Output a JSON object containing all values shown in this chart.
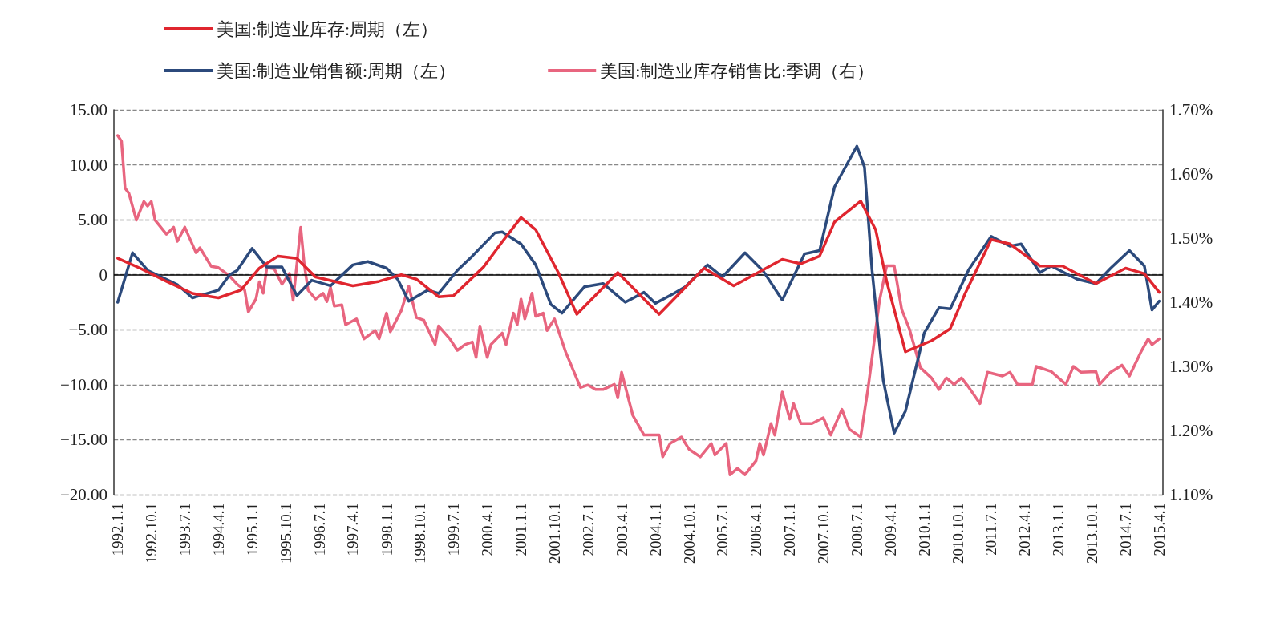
{
  "chart_data": {
    "type": "line",
    "xlim": [
      "1991-12-01",
      "2015-05-01"
    ],
    "xticks": [
      {
        "value": "1992-01-01",
        "label": "1992.1.1"
      },
      {
        "value": "1992-10-01",
        "label": "1992.10.1"
      },
      {
        "value": "1993-07-01",
        "label": "1993.7.1"
      },
      {
        "value": "1994-04-01",
        "label": "1994.4.1"
      },
      {
        "value": "1995-01-01",
        "label": "1995.1.1"
      },
      {
        "value": "1995-10-01",
        "label": "1995.10.1"
      },
      {
        "value": "1996-07-01",
        "label": "1996.7.1"
      },
      {
        "value": "1997-04-01",
        "label": "1997.4.1"
      },
      {
        "value": "1998-01-01",
        "label": "1998.1.1"
      },
      {
        "value": "1998-10-01",
        "label": "1998.10.1"
      },
      {
        "value": "1999-07-01",
        "label": "1999.7.1"
      },
      {
        "value": "2000-04-01",
        "label": "2000.4.1"
      },
      {
        "value": "2001-01-01",
        "label": "2001.1.1"
      },
      {
        "value": "2001-10-01",
        "label": "2001.10.1"
      },
      {
        "value": "2002-07-01",
        "label": "2002.7.1"
      },
      {
        "value": "2003-04-01",
        "label": "2003.4.1"
      },
      {
        "value": "2004-01-01",
        "label": "2004.1.1"
      },
      {
        "value": "2004-10-01",
        "label": "2004.10.1"
      },
      {
        "value": "2005-07-01",
        "label": "2005.7.1"
      },
      {
        "value": "2006-04-01",
        "label": "2006.4.1"
      },
      {
        "value": "2007-01-01",
        "label": "2007.1.1"
      },
      {
        "value": "2007-10-01",
        "label": "2007.10.1"
      },
      {
        "value": "2008-07-01",
        "label": "2008.7.1"
      },
      {
        "value": "2009-04-01",
        "label": "2009.4.1"
      },
      {
        "value": "2010-01-01",
        "label": "2010.1.1"
      },
      {
        "value": "2010-10-01",
        "label": "2010.10.1"
      },
      {
        "value": "2011-07-01",
        "label": "2011.7.1"
      },
      {
        "value": "2012-04-01",
        "label": "2012.4.1"
      },
      {
        "value": "2013-01-01",
        "label": "2013.1.1"
      },
      {
        "value": "2013-10-01",
        "label": "2013.10.1"
      },
      {
        "value": "2014-07-01",
        "label": "2014.7.1"
      },
      {
        "value": "2015-04-01",
        "label": "2015.4.1"
      }
    ],
    "ylim": [
      -20,
      15
    ],
    "yticks": [
      {
        "value": -20,
        "label": "−20.00"
      },
      {
        "value": -15,
        "label": "−15.00"
      },
      {
        "value": -10,
        "label": "−10.00"
      },
      {
        "value": -5,
        "label": "−5.00"
      },
      0,
      {
        "value": 5,
        "label": "5.00"
      },
      {
        "value": 10,
        "label": "10.00"
      },
      {
        "value": 15,
        "label": "15.00"
      }
    ],
    "y2lim": [
      1.1,
      1.7
    ],
    "y2ticks": [
      {
        "value": 1.1,
        "label": "1.10%"
      },
      {
        "value": 1.2,
        "label": "1.20%"
      },
      {
        "value": 1.3,
        "label": "1.30%"
      },
      {
        "value": 1.4,
        "label": "1.40%"
      },
      {
        "value": 1.5,
        "label": "1.50%"
      },
      {
        "value": 1.6,
        "label": "1.60%"
      },
      {
        "value": 1.7,
        "label": "1.70%"
      }
    ],
    "grid": "y",
    "legend": "top left",
    "marker": "none",
    "line_style": "solid",
    "ref_lines": [
      {
        "axis": "y",
        "value": 0,
        "color": "#000000"
      }
    ],
    "series": [
      {
        "name": "美国:制造业库存:周期（左）",
        "color": "#e0262f",
        "x": [
          "1992-01",
          "1992-07",
          "1993-02",
          "1993-09",
          "1994-04",
          "1994-10",
          "1995-03",
          "1995-08",
          "1996-01",
          "1996-06",
          "1997-04",
          "1997-11",
          "1998-05",
          "1998-09",
          "1999-03",
          "1999-07",
          "2000-03",
          "2000-08",
          "2001-01",
          "2001-05",
          "2001-11",
          "2002-04",
          "2003-03",
          "2004-02",
          "2005-02",
          "2005-10",
          "2006-11",
          "2007-04",
          "2007-09",
          "2008-01",
          "2008-08",
          "2008-12",
          "2009-03",
          "2009-08",
          "2010-03",
          "2010-08",
          "2010-12",
          "2011-07",
          "2011-12",
          "2012-08",
          "2013-02",
          "2013-11",
          "2014-07",
          "2014-12",
          "2015-04"
        ],
        "values": [
          1.5,
          0.6,
          -0.6,
          -1.7,
          -2.1,
          -1.4,
          0.6,
          1.7,
          1.5,
          -0.2,
          -1.0,
          -0.6,
          0.0,
          -0.4,
          -2.0,
          -1.9,
          0.7,
          3.0,
          5.2,
          4.1,
          0.2,
          -3.6,
          0.2,
          -3.6,
          0.6,
          -1.0,
          1.4,
          1.0,
          1.7,
          4.8,
          6.7,
          4.1,
          -0.6,
          -7.0,
          -6.0,
          -4.9,
          -1.7,
          3.2,
          2.8,
          0.8,
          0.8,
          -0.8,
          0.6,
          0.1,
          -1.6
        ]
      },
      {
        "name": "美国:制造业销售额:周期（左）",
        "color": "#2c4a7c",
        "x": [
          "1992-01",
          "1992-05",
          "1992-09",
          "1993-05",
          "1993-09",
          "1994-04",
          "1994-07",
          "1994-09",
          "1995-01",
          "1995-05",
          "1995-09",
          "1996-01",
          "1996-05",
          "1996-10",
          "1997-04",
          "1997-08",
          "1998-01",
          "1998-04",
          "1998-07",
          "1998-12",
          "1999-03",
          "1999-08",
          "1999-12",
          "2000-06",
          "2000-08",
          "2001-01",
          "2001-05",
          "2001-09",
          "2001-12",
          "2002-06",
          "2002-11",
          "2003-05",
          "2003-10",
          "2004-01",
          "2004-06",
          "2004-09",
          "2005-03",
          "2005-07",
          "2006-01",
          "2006-06",
          "2006-11",
          "2007-05",
          "2007-09",
          "2008-01",
          "2008-07",
          "2008-09",
          "2008-11",
          "2009-02",
          "2009-05",
          "2009-08",
          "2010-01",
          "2010-05",
          "2010-08",
          "2011-01",
          "2011-07",
          "2011-12",
          "2012-03",
          "2012-08",
          "2012-11",
          "2013-06",
          "2013-11",
          "2014-03",
          "2014-08",
          "2014-12",
          "2015-02",
          "2015-04"
        ],
        "values": [
          -2.5,
          2.0,
          0.4,
          -0.9,
          -2.1,
          -1.4,
          0.0,
          0.4,
          2.4,
          0.7,
          0.7,
          -1.9,
          -0.5,
          -1.0,
          0.9,
          1.2,
          0.6,
          -0.4,
          -2.4,
          -1.4,
          -1.7,
          0.4,
          1.7,
          3.8,
          3.9,
          2.8,
          0.9,
          -2.7,
          -3.5,
          -1.1,
          -0.8,
          -2.5,
          -1.6,
          -2.6,
          -1.7,
          -1.1,
          0.9,
          -0.2,
          2.0,
          0.3,
          -2.3,
          1.9,
          2.2,
          8.0,
          11.7,
          9.8,
          0.5,
          -9.6,
          -14.4,
          -12.4,
          -5.3,
          -3.0,
          -3.1,
          0.5,
          3.5,
          2.6,
          2.8,
          0.2,
          0.8,
          -0.4,
          -0.8,
          0.6,
          2.2,
          0.8,
          -3.2,
          -2.4
        ]
      },
      {
        "name": "美国:制造业库存销售比:季调（右）",
        "color": "#e8657f",
        "axis": "y2",
        "x": [
          "1992-01",
          "1992-02",
          "1992-03",
          "1992-04",
          "1992-06",
          "1992-08",
          "1992-09",
          "1992-10",
          "1992-11",
          "1993-02",
          "1993-04",
          "1993-05",
          "1993-07",
          "1993-10",
          "1993-11",
          "1994-02",
          "1994-04",
          "1994-07",
          "1994-09",
          "1994-11",
          "1994-12",
          "1995-02",
          "1995-03",
          "1995-04",
          "1995-05",
          "1995-07",
          "1995-09",
          "1995-11",
          "1995-12",
          "1996-02",
          "1996-03",
          "1996-04",
          "1996-06",
          "1996-08",
          "1996-09",
          "1996-10",
          "1996-11",
          "1997-01",
          "1997-02",
          "1997-05",
          "1997-07",
          "1997-10",
          "1997-11",
          "1998-01",
          "1998-02",
          "1998-05",
          "1998-07",
          "1998-09",
          "1998-11",
          "1999-02",
          "1999-03",
          "1999-06",
          "1999-08",
          "1999-10",
          "1999-12",
          "2000-01",
          "2000-02",
          "2000-04",
          "2000-05",
          "2000-08",
          "2000-09",
          "2000-11",
          "2000-12",
          "2001-01",
          "2001-02",
          "2001-04",
          "2001-05",
          "2001-07",
          "2001-08",
          "2001-10",
          "2002-01",
          "2002-05",
          "2002-07",
          "2002-09",
          "2002-11",
          "2003-02",
          "2003-03",
          "2003-04",
          "2003-07",
          "2003-10",
          "2004-02",
          "2004-03",
          "2004-05",
          "2004-08",
          "2004-10",
          "2005-01",
          "2005-04",
          "2005-05",
          "2005-08",
          "2005-09",
          "2005-11",
          "2006-01",
          "2006-04",
          "2006-05",
          "2006-06",
          "2006-08",
          "2006-09",
          "2006-11",
          "2007-01",
          "2007-02",
          "2007-04",
          "2007-07",
          "2007-10",
          "2007-12",
          "2008-03",
          "2008-05",
          "2008-08",
          "2008-10",
          "2009-01",
          "2009-03",
          "2009-05",
          "2009-07",
          "2009-09",
          "2009-12",
          "2010-03",
          "2010-05",
          "2010-07",
          "2010-09",
          "2010-11",
          "2011-01",
          "2011-04",
          "2011-06",
          "2011-10",
          "2011-12",
          "2012-02",
          "2012-06",
          "2012-07",
          "2012-11",
          "2013-03",
          "2013-05",
          "2013-07",
          "2013-11",
          "2013-12",
          "2014-03",
          "2014-06",
          "2014-08",
          "2014-11",
          "2015-01",
          "2015-02",
          "2015-04"
        ],
        "values": [
          1.66,
          1.651,
          1.578,
          1.57,
          1.528,
          1.557,
          1.55,
          1.557,
          1.528,
          1.506,
          1.517,
          1.495,
          1.517,
          1.477,
          1.485,
          1.456,
          1.454,
          1.441,
          1.428,
          1.419,
          1.385,
          1.405,
          1.432,
          1.414,
          1.454,
          1.452,
          1.428,
          1.445,
          1.403,
          1.517,
          1.459,
          1.419,
          1.405,
          1.414,
          1.401,
          1.423,
          1.394,
          1.396,
          1.365,
          1.374,
          1.343,
          1.356,
          1.343,
          1.383,
          1.354,
          1.387,
          1.425,
          1.376,
          1.372,
          1.334,
          1.363,
          1.343,
          1.325,
          1.334,
          1.338,
          1.314,
          1.363,
          1.314,
          1.334,
          1.352,
          1.334,
          1.383,
          1.365,
          1.405,
          1.374,
          1.414,
          1.378,
          1.383,
          1.356,
          1.374,
          1.322,
          1.267,
          1.271,
          1.264,
          1.264,
          1.272,
          1.251,
          1.291,
          1.224,
          1.193,
          1.193,
          1.159,
          1.18,
          1.19,
          1.171,
          1.159,
          1.18,
          1.162,
          1.18,
          1.131,
          1.141,
          1.131,
          1.153,
          1.18,
          1.162,
          1.211,
          1.193,
          1.26,
          1.218,
          1.242,
          1.211,
          1.211,
          1.22,
          1.193,
          1.233,
          1.202,
          1.19,
          1.267,
          1.402,
          1.457,
          1.457,
          1.389,
          1.359,
          1.298,
          1.282,
          1.264,
          1.282,
          1.272,
          1.282,
          1.267,
          1.242,
          1.291,
          1.285,
          1.291,
          1.272,
          1.272,
          1.3,
          1.292,
          1.272,
          1.3,
          1.291,
          1.292,
          1.272,
          1.291,
          1.302,
          1.285,
          1.322,
          1.343,
          1.334,
          1.343
        ]
      }
    ]
  }
}
